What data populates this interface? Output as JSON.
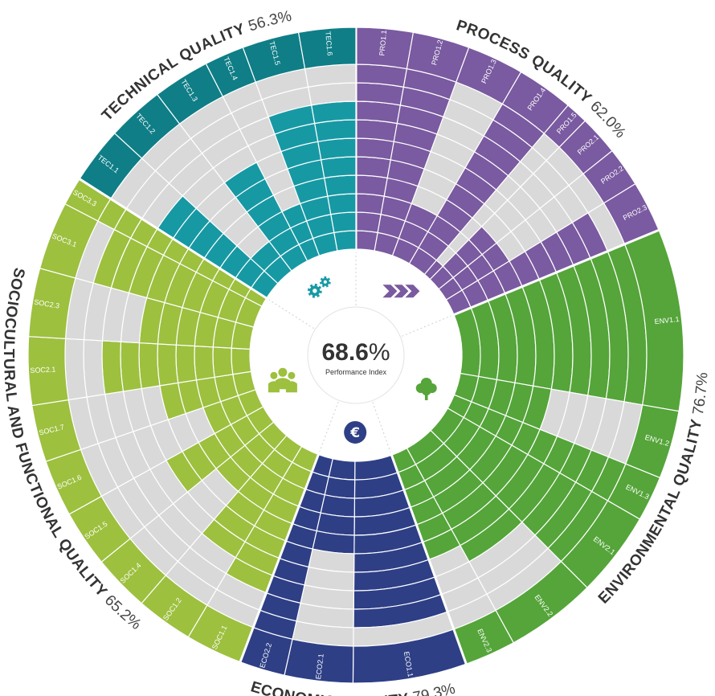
{
  "chart_data": {
    "type": "radial_bar",
    "center": {
      "value": "68.6",
      "unit": "%",
      "label": "Performance Index"
    },
    "levels": 10,
    "categories": [
      {
        "key": "pro",
        "name": "PROCESS QUALITY",
        "value_label": "62.0%",
        "color": "#7a5aa0",
        "icon": "double-chevron-icon",
        "criteria": [
          {
            "id": "PRO1.1",
            "value": 100,
            "weight": 1
          },
          {
            "id": "PRO1.2",
            "value": 100,
            "weight": 1
          },
          {
            "id": "PRO1.3",
            "value": 30,
            "weight": 1
          },
          {
            "id": "PRO1.4",
            "value": 100,
            "weight": 1
          },
          {
            "id": "PRO1.5",
            "value": 10,
            "weight": 0.4
          },
          {
            "id": "PRO2.1",
            "value": 40,
            "weight": 0.7
          },
          {
            "id": "PRO2.2",
            "value": 40,
            "weight": 0.7
          },
          {
            "id": "PRO2.3",
            "value": 90,
            "weight": 0.9
          }
        ]
      },
      {
        "key": "env",
        "name": "ENVIRONMENTAL QUALITY",
        "value_label": "76.7%",
        "color": "#55a53a",
        "icon": "tree-icon",
        "criteria": [
          {
            "id": "ENV1.1",
            "value": 100,
            "weight": 3.2
          },
          {
            "id": "ENV1.2",
            "value": 50,
            "weight": 1.2
          },
          {
            "id": "ENV1.3",
            "value": 100,
            "weight": 0.8
          },
          {
            "id": "ENV2.1",
            "value": 100,
            "weight": 1.5
          },
          {
            "id": "ENV2.2",
            "value": 70,
            "weight": 1.6
          },
          {
            "id": "ENV2.3",
            "value": 60,
            "weight": 0.9
          }
        ]
      },
      {
        "key": "eco",
        "name": "ECONOMIC QUALITY",
        "value_label": "79.3%",
        "color": "#2e3f86",
        "icon": "euro-icon",
        "criteria": [
          {
            "id": "ECO1.1",
            "value": 90,
            "weight": 2
          },
          {
            "id": "ECO2.1",
            "value": 50,
            "weight": 1.2
          },
          {
            "id": "ECO2.2",
            "value": 100,
            "weight": 0.8
          }
        ]
      },
      {
        "key": "soc",
        "name": "SOCIOCULTURAL AND FUNCTIONAL QUALITY",
        "value_label": "65.2%",
        "color": "#9dc03f",
        "icon": "people-icon",
        "criteria": [
          {
            "id": "SOC1.1",
            "value": 80,
            "weight": 1
          },
          {
            "id": "SOC1.2",
            "value": 70,
            "weight": 1
          },
          {
            "id": "SOC1.4",
            "value": 40,
            "weight": 1
          },
          {
            "id": "SOC1.5",
            "value": 60,
            "weight": 1
          },
          {
            "id": "SOC1.6",
            "value": 30,
            "weight": 1
          },
          {
            "id": "SOC1.7",
            "value": 50,
            "weight": 1
          },
          {
            "id": "SOC2.1",
            "value": 80,
            "weight": 1.2
          },
          {
            "id": "SOC2.3",
            "value": 60,
            "weight": 1.2
          },
          {
            "id": "SOC3.1",
            "value": 90,
            "weight": 1.2
          },
          {
            "id": "SOC3.3",
            "value": 100,
            "weight": 0.5
          }
        ]
      },
      {
        "key": "tec",
        "name": "TECHNICAL QUALITY",
        "value_label": "56.3%",
        "color": "#1799a4",
        "outer_color": "#0f7e87",
        "icon": "gears-icon",
        "criteria": [
          {
            "id": "TEC1.1",
            "value": 70,
            "weight": 1
          },
          {
            "id": "TEC1.2",
            "value": 20,
            "weight": 1
          },
          {
            "id": "TEC1.3",
            "value": 60,
            "weight": 1
          },
          {
            "id": "TEC1.4",
            "value": 30,
            "weight": 0.7
          },
          {
            "id": "TEC1.5",
            "value": 80,
            "weight": 1
          },
          {
            "id": "TEC1.6",
            "value": 80,
            "weight": 1
          }
        ]
      }
    ]
  }
}
